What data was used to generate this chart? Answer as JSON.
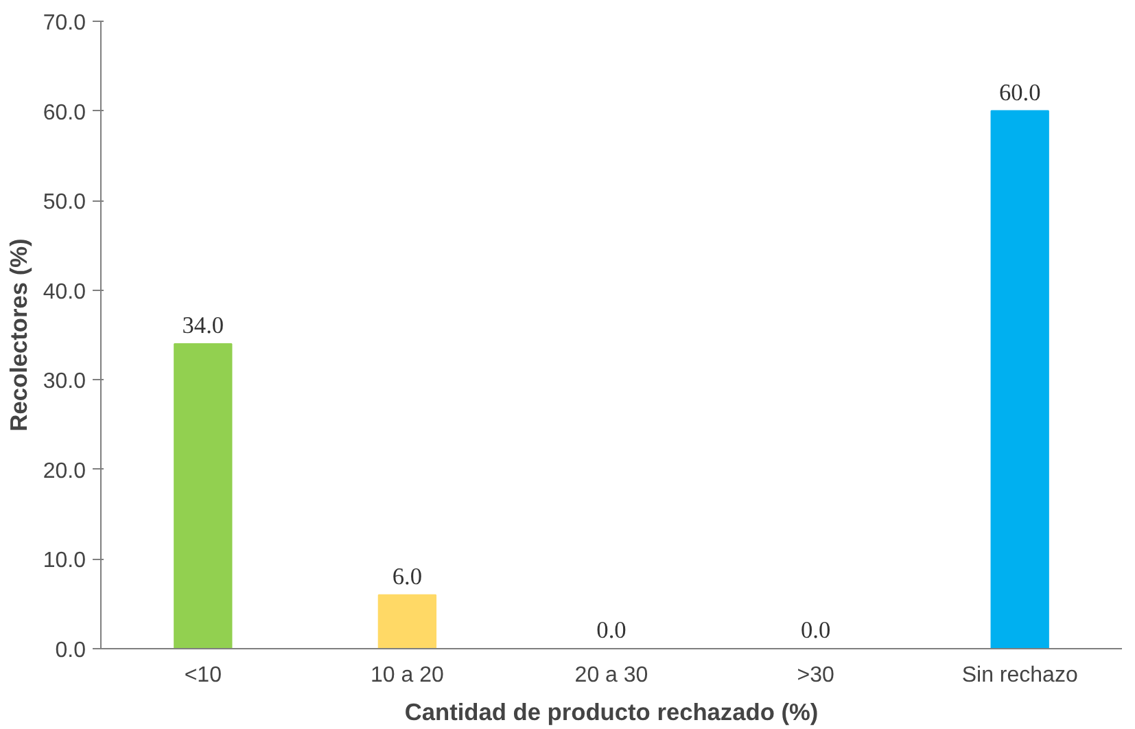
{
  "chart_data": {
    "type": "bar",
    "xlabel": "Cantidad de producto rechazado (%)",
    "ylabel": "Recolectores (%)",
    "categories": [
      "<10",
      "10 a 20",
      "20 a 30",
      ">30",
      "Sin rechazo"
    ],
    "values": [
      34.0,
      6.0,
      0.0,
      0.0,
      60.0
    ],
    "colors": [
      "#92d050",
      "#ffd966",
      "#ffd966",
      "#ffd966",
      "#00b0f0"
    ],
    "value_labels": [
      "34.0",
      "6.0",
      "0.0",
      "0.0",
      "60.0"
    ],
    "ylim": [
      0,
      70
    ],
    "yticks": [
      {
        "value": 0,
        "label": "0.0"
      },
      {
        "value": 10,
        "label": "10.0"
      },
      {
        "value": 20,
        "label": "20.0"
      },
      {
        "value": 30,
        "label": "30.0"
      },
      {
        "value": 40,
        "label": "40.0"
      },
      {
        "value": 50,
        "label": "50.0"
      },
      {
        "value": 60,
        "label": "60.0"
      },
      {
        "value": 70,
        "label": "70.0"
      }
    ],
    "grid": false
  }
}
